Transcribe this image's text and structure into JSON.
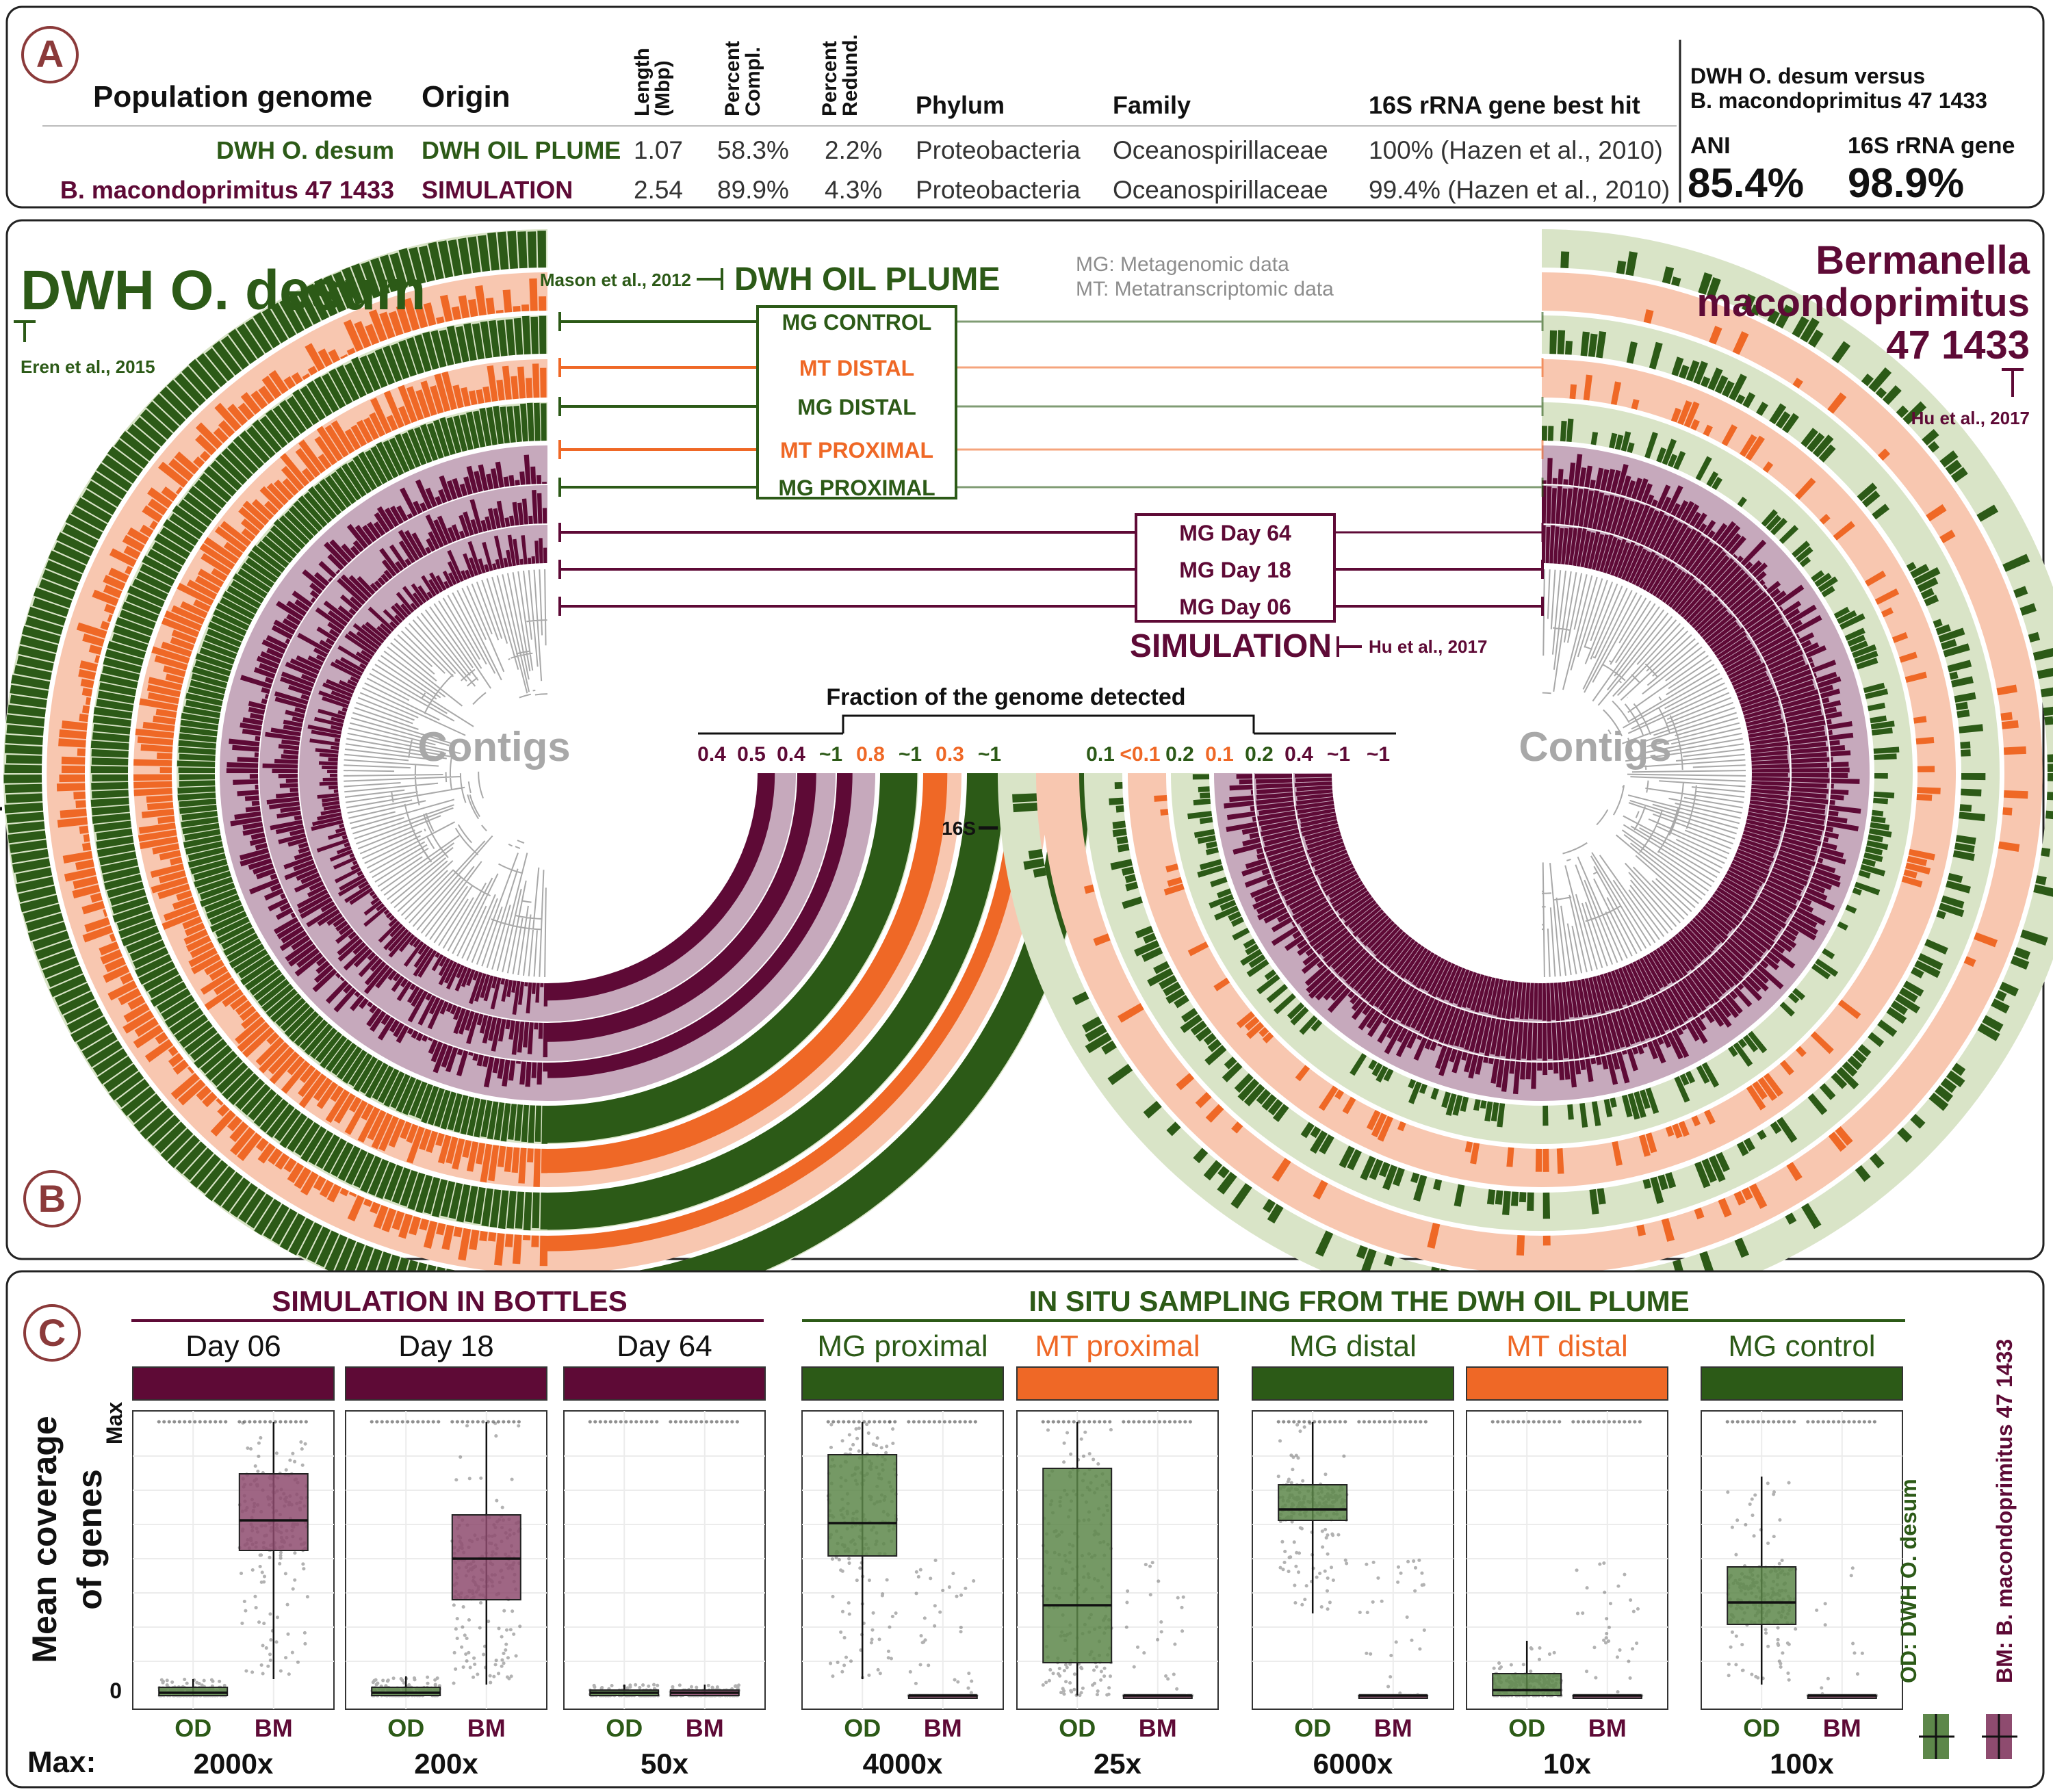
{
  "colors": {
    "green": "#2c5a17",
    "orange": "#ef6826",
    "maroon": "#5e0a36",
    "peach": "#f8c7b0",
    "light_green": "#d9e4c7",
    "mauve": "#c6a9bc",
    "gray": "#a8a8a8",
    "box_green": "#5d874a",
    "box_maroon": "#8e4b6f",
    "panel_label": "#8b3a3a"
  },
  "panel_a": {
    "label": "A",
    "headers": {
      "population_genome": "Population genome",
      "origin": "Origin",
      "length": "Length\n(Mbp)",
      "completion": "Percent\nCompl.",
      "redundancy": "Percent\nRedund.",
      "phylum": "Phylum",
      "family": "Family",
      "best_hit": "16S rRNA gene best hit",
      "comparison": "DWH O. desum versus\nB. macondoprimitus 47 1433"
    },
    "rows": [
      {
        "genome": "DWH O. desum",
        "origin": "DWH OIL PLUME",
        "length": "1.07",
        "completion": "58.3%",
        "redundancy": "2.2%",
        "phylum": "Proteobacteria",
        "family": "Oceanospirillaceae",
        "best_hit": "100%  (Hazen et al., 2010)",
        "color": "green"
      },
      {
        "genome": "B. macondoprimitus 47 1433",
        "origin": "SIMULATION",
        "length": "2.54",
        "completion": "89.9%",
        "redundancy": "4.3%",
        "phylum": "Proteobacteria",
        "family": "Oceanospirillaceae",
        "best_hit": "99.4% (Hazen et al., 2010)",
        "color": "maroon"
      }
    ],
    "ani_label": "ANI",
    "ani_value": "85.4%",
    "rrna_label": "16S rRNA gene",
    "rrna_value": "98.9%"
  },
  "panel_b": {
    "label": "B",
    "left_title": "DWH O. desum",
    "left_citation": "Eren et al., 2015",
    "right_title": [
      "Bermanella",
      "macondoprimitus",
      "47 1433"
    ],
    "right_citation": "Hu et al., 2017",
    "plume_citation": "Mason et al., 2012",
    "plume_title": "DWH OIL PLUME",
    "simulation_title": "SIMULATION",
    "simulation_citation": "Hu et al., 2017",
    "legend_mg": "MG: Metagenomic data",
    "legend_mt": "MT: Metatranscriptomic data",
    "layers": [
      {
        "label": "MG CONTROL",
        "color": "green"
      },
      {
        "label": "MT DISTAL",
        "color": "orange"
      },
      {
        "label": "MG DISTAL",
        "color": "green"
      },
      {
        "label": "MT PROXIMAL",
        "color": "orange"
      },
      {
        "label": "MG PROXIMAL",
        "color": "green"
      },
      {
        "label": "MG Day 64",
        "color": "maroon"
      },
      {
        "label": "MG Day 18",
        "color": "maroon"
      },
      {
        "label": "MG Day 06",
        "color": "maroon"
      }
    ],
    "contigs_label": "Contigs",
    "fraction_title": "Fraction of the genome detected",
    "left_fractions": [
      {
        "v": "0.4",
        "color": "maroon"
      },
      {
        "v": "0.5",
        "color": "maroon"
      },
      {
        "v": "0.4",
        "color": "maroon"
      },
      {
        "v": "~1",
        "color": "green"
      },
      {
        "v": "0.8",
        "color": "orange"
      },
      {
        "v": "~1",
        "color": "green"
      },
      {
        "v": "0.3",
        "color": "orange"
      },
      {
        "v": "~1",
        "color": "green"
      }
    ],
    "right_fractions": [
      {
        "v": "0.1",
        "color": "green"
      },
      {
        "v": "<0.1",
        "color": "orange"
      },
      {
        "v": "0.2",
        "color": "green"
      },
      {
        "v": "0.1",
        "color": "orange"
      },
      {
        "v": "0.2",
        "color": "green"
      },
      {
        "v": "0.4",
        "color": "maroon"
      },
      {
        "v": "~1",
        "color": "maroon"
      },
      {
        "v": "~1",
        "color": "maroon"
      }
    ],
    "marker_16s": "16S"
  },
  "panel_c": {
    "label": "C",
    "group_simulation": "SIMULATION IN BOTTLES",
    "group_insitu": "IN SITU SAMPLING FROM THE DWH OIL PLUME",
    "ylabel": [
      "Mean coverage",
      "of genes"
    ],
    "y_max_label": "Max",
    "y_zero_label": "0",
    "max_prefix": "Max:",
    "legend_od": "OD: DWH O. desum",
    "legend_bm": "BM: B. macondoprimitus 47 1433",
    "od_label": "OD",
    "bm_label": "BM"
  },
  "chart_data": {
    "type": "box",
    "ylabel": "Mean coverage of genes",
    "y_scale": "fraction of panel max",
    "categories": [
      "OD",
      "BM"
    ],
    "panels": [
      {
        "title": "Day 06",
        "color": "maroon",
        "max": "2000x",
        "OD": {
          "q1": 0.0,
          "median": 0.01,
          "q3": 0.03,
          "lo": 0.0,
          "hi": 0.06
        },
        "BM": {
          "q1": 0.53,
          "median": 0.64,
          "q3": 0.81,
          "lo": 0.06,
          "hi": 1.0
        }
      },
      {
        "title": "Day 18",
        "color": "maroon",
        "max": "200x",
        "OD": {
          "q1": 0.0,
          "median": 0.01,
          "q3": 0.03,
          "lo": 0.0,
          "hi": 0.07
        },
        "BM": {
          "q1": 0.35,
          "median": 0.5,
          "q3": 0.66,
          "lo": 0.04,
          "hi": 1.0
        }
      },
      {
        "title": "Day 64",
        "color": "maroon",
        "max": "50x",
        "OD": {
          "q1": 0.0,
          "median": 0.01,
          "q3": 0.02,
          "lo": 0.0,
          "hi": 0.04
        },
        "BM": {
          "q1": 0.0,
          "median": 0.01,
          "q3": 0.02,
          "lo": 0.0,
          "hi": 0.04
        }
      },
      {
        "title": "MG proximal",
        "color": "green",
        "max": "4000x",
        "OD": {
          "q1": 0.51,
          "median": 0.63,
          "q3": 0.88,
          "lo": 0.06,
          "hi": 1.0
        },
        "BM": {
          "q1": 0.0,
          "median": 0.0,
          "q3": 0.0,
          "lo": 0.0,
          "hi": 0.0
        }
      },
      {
        "title": "MT proximal",
        "color": "orange",
        "max": "25x",
        "OD": {
          "q1": 0.12,
          "median": 0.33,
          "q3": 0.83,
          "lo": 0.0,
          "hi": 1.0
        },
        "BM": {
          "q1": 0.0,
          "median": 0.0,
          "q3": 0.0,
          "lo": 0.0,
          "hi": 0.0
        }
      },
      {
        "title": "MG distal",
        "color": "green",
        "max": "6000x",
        "OD": {
          "q1": 0.64,
          "median": 0.68,
          "q3": 0.77,
          "lo": 0.3,
          "hi": 1.0
        },
        "BM": {
          "q1": 0.0,
          "median": 0.0,
          "q3": 0.0,
          "lo": 0.0,
          "hi": 0.0
        }
      },
      {
        "title": "MT distal",
        "color": "orange",
        "max": "10x",
        "OD": {
          "q1": 0.0,
          "median": 0.02,
          "q3": 0.08,
          "lo": 0.0,
          "hi": 0.2
        },
        "BM": {
          "q1": 0.0,
          "median": 0.0,
          "q3": 0.0,
          "lo": 0.0,
          "hi": 0.0
        }
      },
      {
        "title": "MG control",
        "color": "green",
        "max": "100x",
        "OD": {
          "q1": 0.26,
          "median": 0.34,
          "q3": 0.47,
          "lo": 0.04,
          "hi": 0.8
        },
        "BM": {
          "q1": 0.0,
          "median": 0.0,
          "q3": 0.0,
          "lo": 0.0,
          "hi": 0.0
        }
      }
    ]
  }
}
